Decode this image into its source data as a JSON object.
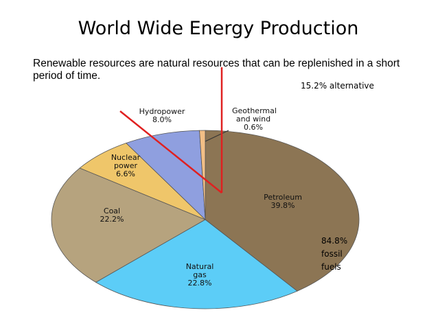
{
  "chart_data": {
    "type": "pie",
    "title": "World Wide Energy Production",
    "subtitle": "Renewable resources are natural resources that can be replenished in a short period of time.",
    "annotations": [
      "15.2% alternative",
      "84.8% fossil fuels"
    ],
    "categories": [
      "Petroleum",
      "Natural gas",
      "Coal",
      "Nuclear power",
      "Hydropower",
      "Geothermal and wind"
    ],
    "values": [
      39.8,
      22.8,
      22.2,
      6.6,
      8.0,
      0.6
    ],
    "value_labels": [
      "39.8%",
      "22.8%",
      "22.2%",
      "6.6%",
      "8.0%",
      "0.6%"
    ],
    "colors": [
      "#8c7554",
      "#5ccdf7",
      "#b6a37e",
      "#efc66a",
      "#8f9fdf",
      "#f2bf86"
    ]
  }
}
